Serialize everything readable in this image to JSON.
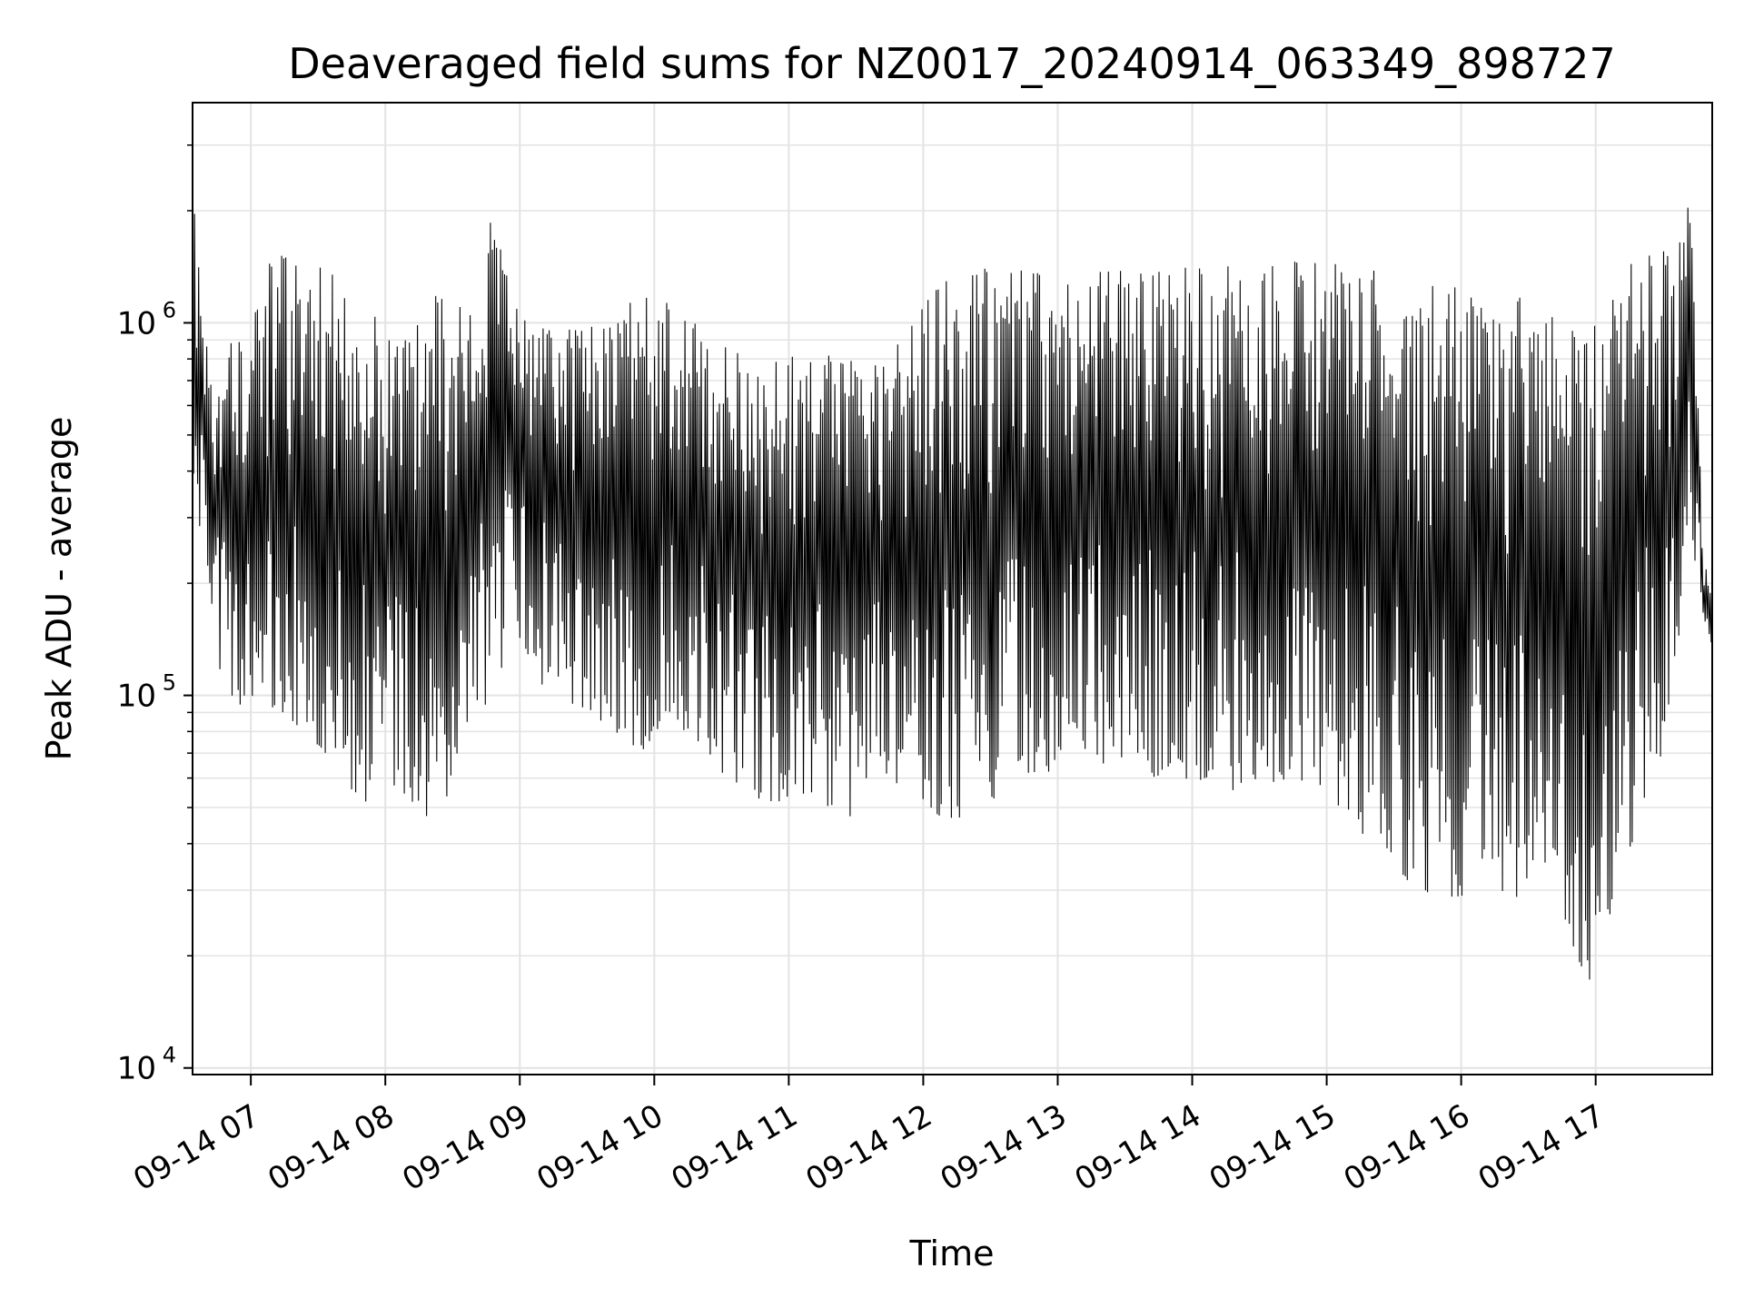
{
  "chart_data": {
    "type": "line",
    "title": "Deaveraged field sums for NZ0017_20240914_063349_898727",
    "xlabel": "Time",
    "ylabel": "Peak ADU - average",
    "yscale": "log",
    "xlim": [
      "2024-09-14 06:34",
      "2024-09-14 17:52"
    ],
    "ylim": [
      9600,
      3900000
    ],
    "grid": true,
    "line_color": "#000000",
    "x_ticks": [
      "09-14 07",
      "09-14 08",
      "09-14 09",
      "09-14 10",
      "09-14 11",
      "09-14 12",
      "09-14 13",
      "09-14 14",
      "09-14 15",
      "09-14 16",
      "09-14 17"
    ],
    "y_ticks": [
      {
        "base": "10",
        "exp": "4",
        "value": 10000
      },
      {
        "base": "10",
        "exp": "5",
        "value": 100000
      },
      {
        "base": "10",
        "exp": "6",
        "value": 1000000
      }
    ],
    "series": [
      {
        "x": [
          "2024-09-14 06:34",
          "2024-09-14 06:35",
          "2024-09-14 06:37",
          "2024-09-14 06:38",
          "2024-09-14 06:40",
          "2024-09-14 06:45",
          "2024-09-14 06:52",
          "2024-09-14 07:00",
          "2024-09-14 07:10",
          "2024-09-14 07:25",
          "2024-09-14 07:40",
          "2024-09-14 07:50",
          "2024-09-14 08:00",
          "2024-09-14 08:15",
          "2024-09-14 08:22",
          "2024-09-14 08:35",
          "2024-09-14 08:48",
          "2024-09-14 08:55",
          "2024-09-14 09:05",
          "2024-09-14 09:30",
          "2024-09-14 09:55",
          "2024-09-14 10:15",
          "2024-09-14 10:30",
          "2024-09-14 10:50",
          "2024-09-14 11:10",
          "2024-09-14 11:25",
          "2024-09-14 11:45",
          "2024-09-14 12:00",
          "2024-09-14 12:15",
          "2024-09-14 12:45",
          "2024-09-14 13:15",
          "2024-09-14 13:45",
          "2024-09-14 14:15",
          "2024-09-14 14:45",
          "2024-09-14 15:05",
          "2024-09-14 15:20",
          "2024-09-14 15:40",
          "2024-09-14 16:00",
          "2024-09-14 16:20",
          "2024-09-14 16:40",
          "2024-09-14 16:58",
          "2024-09-14 17:10",
          "2024-09-14 17:25",
          "2024-09-14 17:35",
          "2024-09-14 17:40",
          "2024-09-14 17:44",
          "2024-09-14 17:48",
          "2024-09-14 17:51"
        ],
        "low": [
          500000,
          250000,
          190000,
          300000,
          250000,
          120000,
          90000,
          100000,
          90000,
          80000,
          60000,
          50000,
          60000,
          50000,
          40000,
          80000,
          100000,
          120000,
          110000,
          90000,
          70000,
          80000,
          60000,
          50000,
          55000,
          45000,
          60000,
          50000,
          45000,
          60000,
          65000,
          60000,
          55000,
          60000,
          50000,
          40000,
          30000,
          28000,
          30000,
          25000,
          17000,
          30000,
          60000,
          80000,
          300000,
          220000,
          140000,
          120000
        ],
        "high": [
          1700000,
          2200000,
          1500000,
          1200000,
          900000,
          800000,
          1000000,
          1200000,
          1500000,
          1600000,
          1300000,
          1200000,
          1000000,
          1100000,
          1200000,
          1100000,
          2000000,
          1300000,
          1100000,
          1000000,
          1200000,
          1100000,
          900000,
          800000,
          850000,
          800000,
          900000,
          1200000,
          1400000,
          1450000,
          1400000,
          1500000,
          1450000,
          1500000,
          1450000,
          1400000,
          1300000,
          1300000,
          1200000,
          1100000,
          1000000,
          1300000,
          1700000,
          1600000,
          2500000,
          1500000,
          250000,
          200000
        ]
      }
    ]
  }
}
